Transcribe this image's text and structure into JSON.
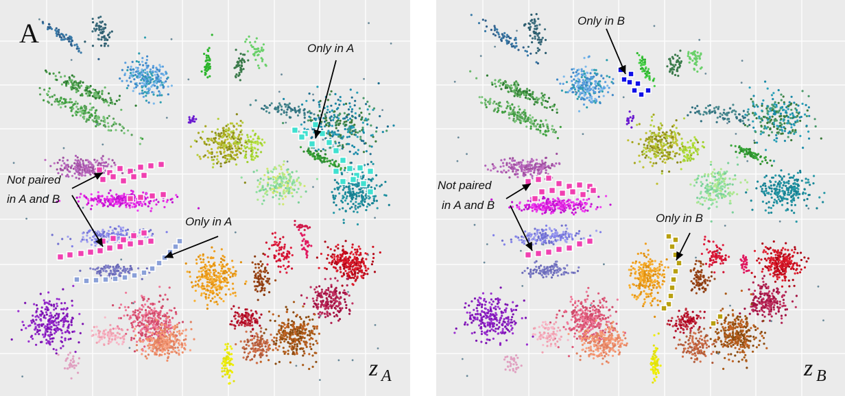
{
  "chart_data": [
    {
      "type": "scatter",
      "panel_letter": "A",
      "axis_label": "z",
      "axis_label_sub": "A",
      "annotations": [
        {
          "lines": [
            "Only in A"
          ]
        },
        {
          "lines": [
            "Not paired",
            "in A and B"
          ]
        },
        {
          "lines": [
            "Only in A"
          ]
        }
      ],
      "grid": true
    },
    {
      "type": "scatter",
      "panel_letter": "",
      "axis_label": "z",
      "axis_label_sub": "B",
      "annotations": [
        {
          "lines": [
            "Only in B"
          ]
        },
        {
          "lines": [
            "Not paired",
            "in A and B"
          ]
        },
        {
          "lines": [
            "Only in B"
          ]
        }
      ],
      "grid": true
    }
  ]
}
